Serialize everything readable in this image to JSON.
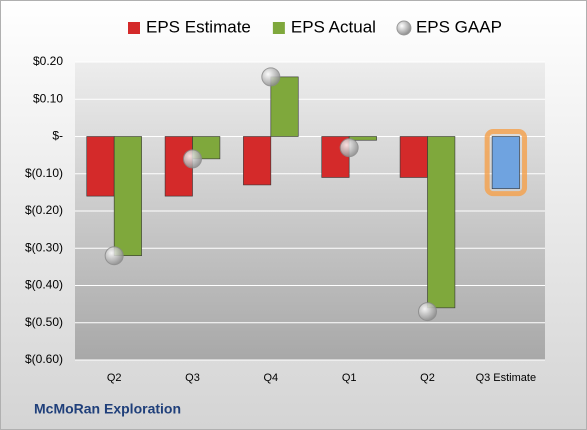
{
  "chart_data": {
    "type": "bar",
    "footer": "McMoRan Exploration",
    "categories": [
      "Q2",
      "Q3",
      "Q4",
      "Q1",
      "Q2",
      "Q3 Estimate"
    ],
    "series": [
      {
        "name": "EPS Estimate",
        "color": "#d42a2a",
        "point_colors": [
          "#d42a2a",
          "#d42a2a",
          "#d42a2a",
          "#d42a2a",
          "#d42a2a",
          "#6fa3e0"
        ],
        "values": [
          -0.16,
          -0.16,
          -0.13,
          -0.11,
          -0.11,
          -0.14
        ]
      },
      {
        "name": "EPS Actual",
        "color": "#7fa83c",
        "values": [
          -0.32,
          -0.06,
          0.16,
          -0.01,
          -0.46,
          null
        ]
      },
      {
        "name": "EPS GAAP",
        "color": "#b8b8b8",
        "marker": "circle",
        "values": [
          -0.32,
          -0.06,
          0.16,
          -0.03,
          -0.47,
          null
        ]
      }
    ],
    "ylim": [
      -0.6,
      0.2
    ],
    "yticks": [
      {
        "value": 0.2,
        "label": "$0.20"
      },
      {
        "value": 0.1,
        "label": "$0.10"
      },
      {
        "value": 0,
        "label": "$-"
      },
      {
        "value": -0.1,
        "label": "$(0.10)"
      },
      {
        "value": -0.2,
        "label": "$(0.20)"
      },
      {
        "value": -0.3,
        "label": "$(0.30)"
      },
      {
        "value": -0.4,
        "label": "$(0.40)"
      },
      {
        "value": -0.5,
        "label": "$(0.50)"
      },
      {
        "value": -0.6,
        "label": "$(0.60)"
      }
    ],
    "grid": true
  }
}
